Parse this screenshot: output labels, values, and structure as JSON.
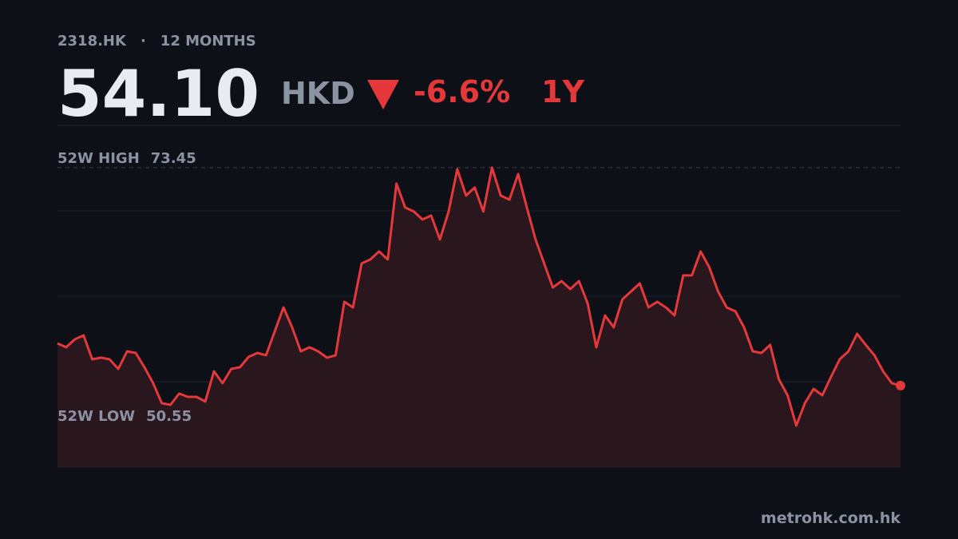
{
  "header": {
    "ticker": "2318.HK",
    "separator": "·",
    "period": "12 MONTHS",
    "price": "54.10",
    "currency": "HKD",
    "change": "-6.6%",
    "range": "1Y"
  },
  "chart_data": {
    "type": "line",
    "color": "#e5383b",
    "ylim": [
      46.86,
      77.2
    ],
    "high": {
      "label": "52W HIGH",
      "value": 73.45
    },
    "low": {
      "label": "52W LOW",
      "value": 50.55
    },
    "values": [
      57.85,
      57.5,
      58.21,
      58.56,
      56.43,
      56.58,
      56.43,
      55.58,
      57.14,
      57.0,
      55.73,
      54.31,
      52.54,
      52.39,
      53.39,
      53.1,
      53.1,
      52.68,
      55.37,
      54.31,
      55.58,
      55.73,
      56.65,
      57.0,
      56.79,
      58.92,
      61.04,
      59.27,
      57.14,
      57.5,
      57.14,
      56.58,
      56.79,
      61.54,
      61.04,
      64.94,
      65.3,
      66.01,
      65.3,
      72.03,
      69.91,
      69.55,
      68.84,
      69.2,
      67.07,
      69.55,
      73.31,
      70.97,
      71.68,
      69.55,
      73.45,
      70.97,
      70.61,
      72.88,
      69.91,
      67.07,
      64.94,
      62.81,
      63.38,
      62.67,
      63.38,
      61.4,
      57.5,
      60.33,
      59.27,
      61.75,
      62.46,
      63.17,
      61.04,
      61.54,
      61.04,
      60.33,
      63.88,
      63.88,
      66.01,
      64.59,
      62.46,
      61.04,
      60.69,
      59.27,
      57.14,
      57.0,
      57.71,
      54.66,
      53.24,
      50.55,
      52.54,
      53.81,
      53.24,
      54.87,
      56.43,
      57.14,
      58.7,
      57.71,
      56.79,
      55.37,
      54.31,
      54.1
    ]
  },
  "footer": {
    "source": "metrohk.com.hk"
  }
}
